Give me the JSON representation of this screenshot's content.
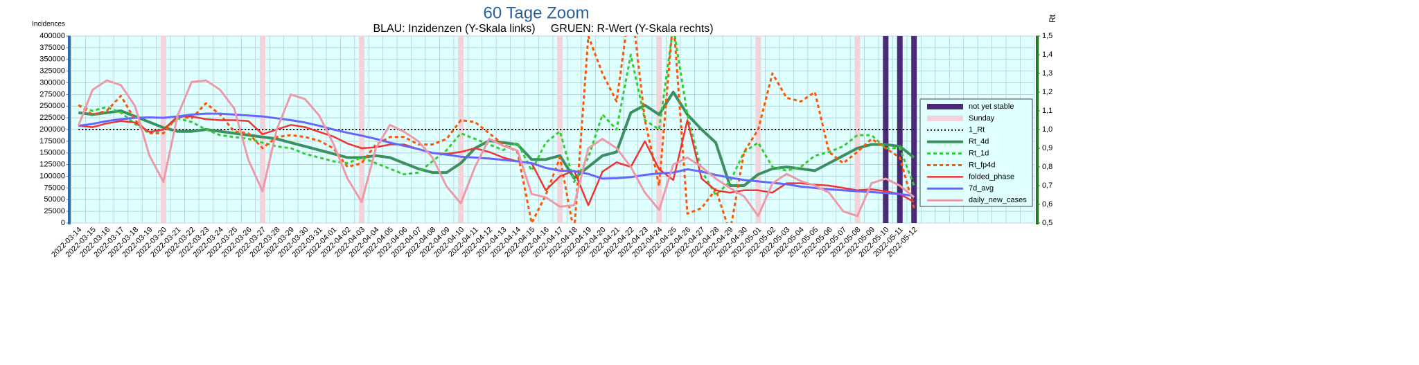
{
  "chart_data": {
    "type": "line",
    "title": "60 Tage Zoom",
    "subtitle": "BLAU: Inzidenzen (Y-Skala links)     GRUEN: R-Wert (Y-Skala rechts)",
    "y_label": "Incidences",
    "y2_label": "Rt",
    "categories": [
      "2022-03-14",
      "2022-03-15",
      "2022-03-16",
      "2022-03-17",
      "2022-03-18",
      "2022-03-19",
      "2022-03-20",
      "2022-03-21",
      "2022-03-22",
      "2022-03-23",
      "2022-03-24",
      "2022-03-25",
      "2022-03-26",
      "2022-03-27",
      "2022-03-28",
      "2022-03-29",
      "2022-03-30",
      "2022-03-31",
      "2022-04-01",
      "2022-04-02",
      "2022-04-03",
      "2022-04-04",
      "2022-04-05",
      "2022-04-06",
      "2022-04-07",
      "2022-04-08",
      "2022-04-09",
      "2022-04-10",
      "2022-04-11",
      "2022-04-12",
      "2022-04-13",
      "2022-04-14",
      "2022-04-15",
      "2022-04-16",
      "2022-04-17",
      "2022-04-18",
      "2022-04-19",
      "2022-04-20",
      "2022-04-21",
      "2022-04-22",
      "2022-04-23",
      "2022-04-24",
      "2022-04-25",
      "2022-04-26",
      "2022-04-27",
      "2022-04-28",
      "2022-04-29",
      "2022-04-30",
      "2022-05-01",
      "2022-05-02",
      "2022-05-03",
      "2022-05-04",
      "2022-05-05",
      "2022-05-06",
      "2022-05-07",
      "2022-05-08",
      "2022-05-09",
      "2022-05-10",
      "2022-05-11",
      "2022-05-12"
    ],
    "ylim": [
      0,
      400000
    ],
    "yticks": [
      0,
      25000,
      50000,
      75000,
      100000,
      125000,
      150000,
      175000,
      200000,
      225000,
      250000,
      275000,
      300000,
      325000,
      350000,
      375000,
      400000
    ],
    "y2lim": [
      0.5,
      1.5
    ],
    "y2ticks": [
      {
        "value": 0.5,
        "label": "0,5"
      },
      {
        "value": 0.6,
        "label": "0,6"
      },
      {
        "value": 0.7,
        "label": "0,7"
      },
      {
        "value": 0.8,
        "label": "0,8"
      },
      {
        "value": 0.9,
        "label": "0,9"
      },
      {
        "value": 1.0,
        "label": "1,0"
      },
      {
        "value": 1.1,
        "label": "1,1"
      },
      {
        "value": 1.2,
        "label": "1,2"
      },
      {
        "value": 1.3,
        "label": "1,3"
      },
      {
        "value": 1.4,
        "label": "1,4"
      },
      {
        "value": 1.5,
        "label": "1,5"
      }
    ],
    "grid": true,
    "legend": "right",
    "series": [
      {
        "name": "not yet stable",
        "kind": "bar",
        "color": "#4b2a75",
        "axis": "y",
        "values": [
          null,
          null,
          null,
          null,
          null,
          null,
          null,
          null,
          null,
          null,
          null,
          null,
          null,
          null,
          null,
          null,
          null,
          null,
          null,
          null,
          null,
          null,
          null,
          null,
          null,
          null,
          null,
          null,
          null,
          null,
          null,
          null,
          null,
          null,
          null,
          null,
          null,
          null,
          null,
          null,
          null,
          null,
          null,
          null,
          null,
          null,
          null,
          null,
          null,
          null,
          null,
          null,
          null,
          null,
          null,
          null,
          null,
          400000,
          400000,
          400000
        ]
      },
      {
        "name": "Sunday",
        "kind": "bar",
        "color": "#f0d4da",
        "axis": "y",
        "values": [
          null,
          null,
          null,
          null,
          null,
          null,
          400000,
          null,
          null,
          null,
          null,
          null,
          null,
          400000,
          null,
          null,
          null,
          null,
          null,
          null,
          400000,
          null,
          null,
          null,
          null,
          null,
          null,
          400000,
          null,
          null,
          null,
          null,
          null,
          null,
          400000,
          null,
          null,
          null,
          null,
          null,
          null,
          400000,
          null,
          null,
          null,
          null,
          null,
          null,
          400000,
          null,
          null,
          null,
          null,
          null,
          null,
          400000,
          null,
          null,
          null,
          null
        ]
      },
      {
        "name": "1_Rt",
        "kind": "line",
        "dash": "dot",
        "width": 2,
        "color": "#000000",
        "axis": "y2",
        "values": [
          1,
          1,
          1,
          1,
          1,
          1,
          1,
          1,
          1,
          1,
          1,
          1,
          1,
          1,
          1,
          1,
          1,
          1,
          1,
          1,
          1,
          1,
          1,
          1,
          1,
          1,
          1,
          1,
          1,
          1,
          1,
          1,
          1,
          1,
          1,
          1,
          1,
          1,
          1,
          1,
          1,
          1,
          1,
          1,
          1,
          1,
          1,
          1,
          1,
          1,
          1,
          1,
          1,
          1,
          1,
          1,
          1,
          1,
          1,
          1
        ]
      },
      {
        "name": "Rt_4d",
        "kind": "line",
        "width": 4,
        "color": "#3c9060",
        "axis": "y2",
        "values": [
          1.09,
          1.08,
          1.09,
          1.1,
          1.07,
          1.04,
          1.01,
          0.99,
          0.99,
          1.0,
          0.99,
          0.98,
          0.97,
          0.96,
          0.95,
          0.93,
          0.91,
          0.89,
          0.87,
          0.85,
          0.85,
          0.86,
          0.85,
          0.82,
          0.79,
          0.77,
          0.77,
          0.82,
          0.9,
          0.94,
          0.93,
          0.92,
          0.84,
          0.84,
          0.86,
          0.74,
          0.8,
          0.86,
          0.88,
          1.09,
          1.13,
          1.08,
          1.2,
          1.08,
          1.0,
          0.93,
          0.7,
          0.7,
          0.76,
          0.79,
          0.8,
          0.79,
          0.78,
          0.82,
          0.86,
          0.9,
          0.92,
          0.92,
          0.91,
          0.85
        ]
      },
      {
        "name": "Rt_1d",
        "kind": "line",
        "dash": "dash",
        "width": 3,
        "color": "#33cc33",
        "axis": "y2",
        "values": [
          1.13,
          1.1,
          1.12,
          1.09,
          1.03,
          0.98,
          1.0,
          1.06,
          1.04,
          1.0,
          0.97,
          0.96,
          0.95,
          0.93,
          0.91,
          0.9,
          0.87,
          0.85,
          0.83,
          0.82,
          0.85,
          0.82,
          0.79,
          0.76,
          0.77,
          0.83,
          0.89,
          0.98,
          0.95,
          0.92,
          0.89,
          0.93,
          0.78,
          0.93,
          0.99,
          0.72,
          0.85,
          1.08,
          1.0,
          1.4,
          1.05,
          1.0,
          1.55,
          1.08,
          0.78,
          0.65,
          0.72,
          0.88,
          0.93,
          0.8,
          0.78,
          0.8,
          0.86,
          0.88,
          0.91,
          0.97,
          0.97,
          0.9,
          0.9,
          0.7
        ]
      },
      {
        "name": "Rt_fp4d",
        "kind": "line",
        "dash": "dash",
        "width": 3,
        "color": "#ff5500",
        "axis": "y2",
        "values": [
          1.13,
          1.08,
          1.1,
          1.18,
          1.05,
          0.98,
          0.98,
          1.07,
          1.06,
          1.14,
          1.08,
          0.99,
          0.98,
          0.9,
          0.96,
          0.97,
          0.96,
          0.94,
          0.9,
          0.8,
          0.82,
          0.92,
          0.96,
          0.96,
          0.92,
          0.92,
          0.95,
          1.05,
          1.04,
          0.98,
          0.92,
          0.88,
          0.5,
          0.65,
          0.85,
          0.45,
          1.5,
          1.3,
          1.15,
          1.7,
          1.05,
          0.7,
          1.6,
          0.55,
          0.58,
          0.68,
          0.45,
          0.88,
          1.0,
          1.3,
          1.17,
          1.15,
          1.2,
          0.88,
          0.82,
          0.88,
          0.95,
          0.9,
          0.85,
          0.58
        ]
      },
      {
        "name": "folded_phase",
        "kind": "line",
        "width": 2.5,
        "color": "#ee3333",
        "axis": "y",
        "values": [
          208000,
          205000,
          213000,
          218000,
          215000,
          195000,
          200000,
          228000,
          228000,
          222000,
          220000,
          220000,
          218000,
          190000,
          200000,
          210000,
          205000,
          195000,
          185000,
          170000,
          160000,
          162000,
          168000,
          168000,
          158000,
          150000,
          148000,
          152000,
          160000,
          152000,
          140000,
          132000,
          128000,
          70000,
          100000,
          112000,
          38000,
          110000,
          130000,
          120000,
          175000,
          115000,
          92000,
          220000,
          95000,
          70000,
          65000,
          70000,
          70000,
          65000,
          85000,
          85000,
          82000,
          80000,
          75000,
          70000,
          72000,
          68000,
          62000,
          45000
        ]
      },
      {
        "name": "7d_avg",
        "kind": "line",
        "width": 3,
        "color": "#6666ff",
        "axis": "y",
        "values": [
          208000,
          212000,
          218000,
          222000,
          225000,
          226000,
          225000,
          228000,
          232000,
          234000,
          234000,
          232000,
          230000,
          228000,
          224000,
          220000,
          215000,
          208000,
          200000,
          193000,
          187000,
          180000,
          172000,
          165000,
          158000,
          150000,
          146000,
          142000,
          140000,
          138000,
          135000,
          132000,
          128000,
          118000,
          112000,
          111000,
          105000,
          95000,
          96000,
          98000,
          103000,
          106000,
          108000,
          115000,
          110000,
          103000,
          97000,
          92000,
          89000,
          86000,
          83000,
          78000,
          75000,
          72000,
          70000,
          68000,
          66000,
          64000,
          62000,
          58000
        ]
      },
      {
        "name": "daily_new_cases",
        "kind": "line",
        "width": 3,
        "color": "#ee99a8",
        "axis": "y",
        "values": [
          208000,
          285000,
          305000,
          295000,
          250000,
          145000,
          88000,
          230000,
          302000,
          305000,
          285000,
          245000,
          135000,
          68000,
          200000,
          275000,
          265000,
          230000,
          170000,
          95000,
          45000,
          160000,
          210000,
          195000,
          175000,
          140000,
          78000,
          42000,
          120000,
          180000,
          165000,
          155000,
          62000,
          55000,
          35000,
          38000,
          160000,
          180000,
          160000,
          120000,
          65000,
          28000,
          125000,
          140000,
          120000,
          95000,
          75000,
          57000,
          15000,
          85000,
          105000,
          90000,
          80000,
          65000,
          25000,
          15000,
          85000,
          95000,
          80000,
          55000
        ]
      }
    ]
  }
}
